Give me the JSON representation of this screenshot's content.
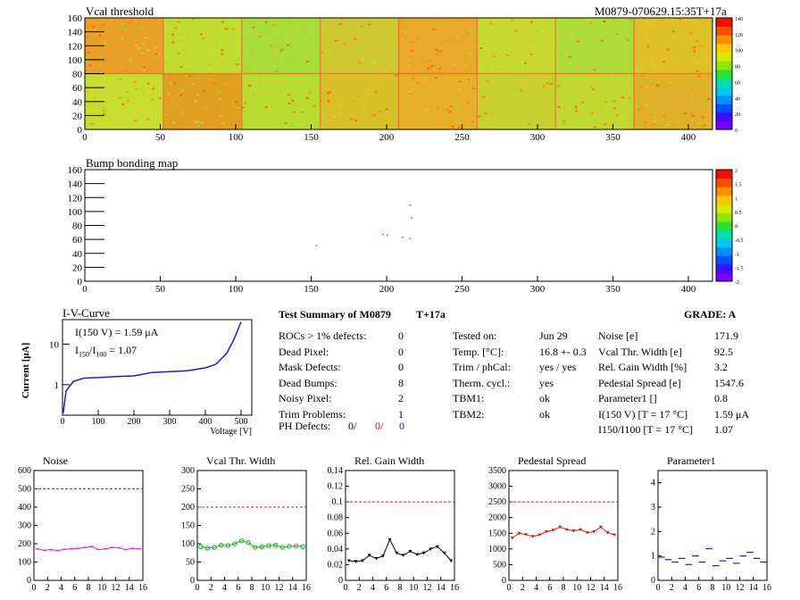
{
  "maps": {
    "vcal": {
      "title": "Vcal threshold",
      "module_label": "M0879-070629.15:35T+17a",
      "xticks": [
        "0",
        "50",
        "100",
        "150",
        "200",
        "250",
        "300",
        "350",
        "400"
      ],
      "yticks": [
        "0",
        "20",
        "40",
        "60",
        "80",
        "100",
        "120",
        "140",
        "160"
      ],
      "zticks": [
        "0",
        "20",
        "40",
        "60",
        "80",
        "100",
        "120",
        "140"
      ]
    },
    "bump": {
      "title": "Bump bonding map",
      "xticks": [
        "0",
        "50",
        "100",
        "150",
        "200",
        "250",
        "300",
        "350",
        "400"
      ],
      "yticks": [
        "0",
        "20",
        "40",
        "60",
        "80",
        "100",
        "120",
        "140",
        "160"
      ],
      "zticks": [
        "-2",
        "-1.5",
        "-1",
        "-0.5",
        "0",
        "0.5",
        "1",
        "1.5",
        "2"
      ]
    }
  },
  "iv": {
    "title": "I-V-Curve",
    "ylabel": "Current [μA]",
    "xlabel": "Voltage [V]",
    "i150": "I(150 V) = 1.59 μA",
    "ratio_label": "I",
    "ratio_sub1": "150",
    "ratio_slash": "/I",
    "ratio_sub2": "100",
    "ratio_value": " =  1.07",
    "xticks": [
      "0",
      "100",
      "200",
      "300",
      "400",
      "500"
    ],
    "yticks": [
      "1",
      "10"
    ]
  },
  "summary": {
    "title": "Test Summary of M0879",
    "suffix": "T+17a",
    "grade": "GRADE:  A",
    "left": [
      {
        "label": "ROCs > 1% defects:",
        "value": "0"
      },
      {
        "label": "Dead Pixel:",
        "value": "0"
      },
      {
        "label": "Mask Defects:",
        "value": "0"
      },
      {
        "label": "Dead Bumps:",
        "value": "8"
      },
      {
        "label": "Noisy Pixel:",
        "value": "2"
      },
      {
        "label": "Trim Problems:",
        "value": "1"
      }
    ],
    "ph": {
      "label": "PH Defects:",
      "v1": "0/",
      "v2": "0/",
      "v3": "0"
    },
    "mid": [
      {
        "label": "Tested on:",
        "value": "Jun 29"
      },
      {
        "label": "Temp. [°C]:",
        "value": "16.8 +- 0.3"
      },
      {
        "label": "Trim / phCal:",
        "value": "yes / yes"
      },
      {
        "label": "Therm. cycl.:",
        "value": "yes"
      },
      {
        "label": "TBM1:",
        "value": "ok"
      },
      {
        "label": "TBM2:",
        "value": "ok"
      }
    ],
    "right": [
      {
        "label": "Noise [e]",
        "value": "171.9"
      },
      {
        "label": "Vcal Thr. Width [e]",
        "value": "92.5"
      },
      {
        "label": "Rel. Gain Width [%]",
        "value": "3.2"
      },
      {
        "label": "Pedestal Spread [e]",
        "value": "1547.6"
      },
      {
        "label": "Parameter1 []",
        "value": "0.8"
      },
      {
        "label": "I(150 V) [T = 17 °C]",
        "value": "1.59 μA"
      },
      {
        "label": "I150/I100  [T = 17 °C]",
        "value": "1.07"
      }
    ]
  },
  "chart_data": [
    {
      "type": "line",
      "title": "Noise",
      "x": [
        0,
        1,
        2,
        3,
        4,
        5,
        6,
        7,
        8,
        9,
        10,
        11,
        12,
        13,
        14,
        15
      ],
      "values": [
        172,
        165,
        168,
        163,
        170,
        172,
        175,
        180,
        185,
        168,
        172,
        180,
        178,
        168,
        175,
        172
      ],
      "ylim": [
        0,
        600
      ],
      "yticks": [
        "0",
        "100",
        "200",
        "300",
        "400",
        "500",
        "600"
      ],
      "ref": 500,
      "xticks": [
        "0",
        "2",
        "4",
        "6",
        "8",
        "10",
        "12",
        "14",
        "16"
      ],
      "color": "#e020e0"
    },
    {
      "type": "line",
      "title": "Vcal Thr. Width",
      "x": [
        0,
        1,
        2,
        3,
        4,
        5,
        6,
        7,
        8,
        9,
        10,
        11,
        12,
        13,
        14,
        15
      ],
      "values": [
        92,
        88,
        90,
        96,
        95,
        100,
        108,
        103,
        90,
        92,
        95,
        96,
        90,
        93,
        94,
        92
      ],
      "ylim": [
        0,
        300
      ],
      "yticks": [
        "0",
        "50",
        "100",
        "150",
        "200",
        "250",
        "300"
      ],
      "ref": 200,
      "xticks": [
        "0",
        "2",
        "4",
        "6",
        "8",
        "10",
        "12",
        "14",
        "16"
      ],
      "color": "#20b020"
    },
    {
      "type": "line",
      "title": "Rel. Gain Width",
      "x": [
        0,
        1,
        2,
        3,
        4,
        5,
        6,
        7,
        8,
        9,
        10,
        11,
        12,
        13,
        14,
        15
      ],
      "values": [
        0.025,
        0.024,
        0.025,
        0.032,
        0.028,
        0.031,
        0.052,
        0.035,
        0.032,
        0.037,
        0.033,
        0.035,
        0.04,
        0.043,
        0.035,
        0.025
      ],
      "ylim": [
        0,
        0.14
      ],
      "yticks": [
        "0",
        "0.02",
        "0.04",
        "0.06",
        "0.08",
        "0.1",
        "0.12",
        "0.14"
      ],
      "ref": 0.1,
      "xticks": [
        "0",
        "2",
        "4",
        "6",
        "8",
        "10",
        "12",
        "14",
        "16"
      ],
      "color": "#000000"
    },
    {
      "type": "line",
      "title": "Pedestal Spread",
      "x": [
        0,
        1,
        2,
        3,
        4,
        5,
        6,
        7,
        8,
        9,
        10,
        11,
        12,
        13,
        14,
        15
      ],
      "values": [
        1350,
        1500,
        1460,
        1400,
        1450,
        1550,
        1600,
        1700,
        1620,
        1580,
        1620,
        1520,
        1550,
        1700,
        1520,
        1450
      ],
      "ylim": [
        0,
        3500
      ],
      "yticks": [
        "0",
        "500",
        "1000",
        "1500",
        "2000",
        "2500",
        "3000",
        "3500"
      ],
      "ref": 2500,
      "xticks": [
        "0",
        "2",
        "4",
        "6",
        "8",
        "10",
        "12",
        "14",
        "16"
      ],
      "color": "#e01818"
    },
    {
      "type": "scatter",
      "title": "Parameter1",
      "x": [
        0,
        1,
        2,
        3,
        4,
        5,
        6,
        7,
        8,
        9,
        10,
        11,
        12,
        13,
        14,
        15
      ],
      "values": [
        0.95,
        0.85,
        0.75,
        0.9,
        0.65,
        1.0,
        0.75,
        1.3,
        0.6,
        0.8,
        0.9,
        0.7,
        1.0,
        1.15,
        0.9,
        0.75
      ],
      "ylim": [
        0,
        4.5
      ],
      "yticks": [
        "0",
        "1",
        "2",
        "3",
        "4"
      ],
      "ref": null,
      "xticks": [
        "0",
        "2",
        "4",
        "6",
        "8",
        "10",
        "12",
        "14",
        "16"
      ],
      "color": "#1c1cc8"
    }
  ]
}
